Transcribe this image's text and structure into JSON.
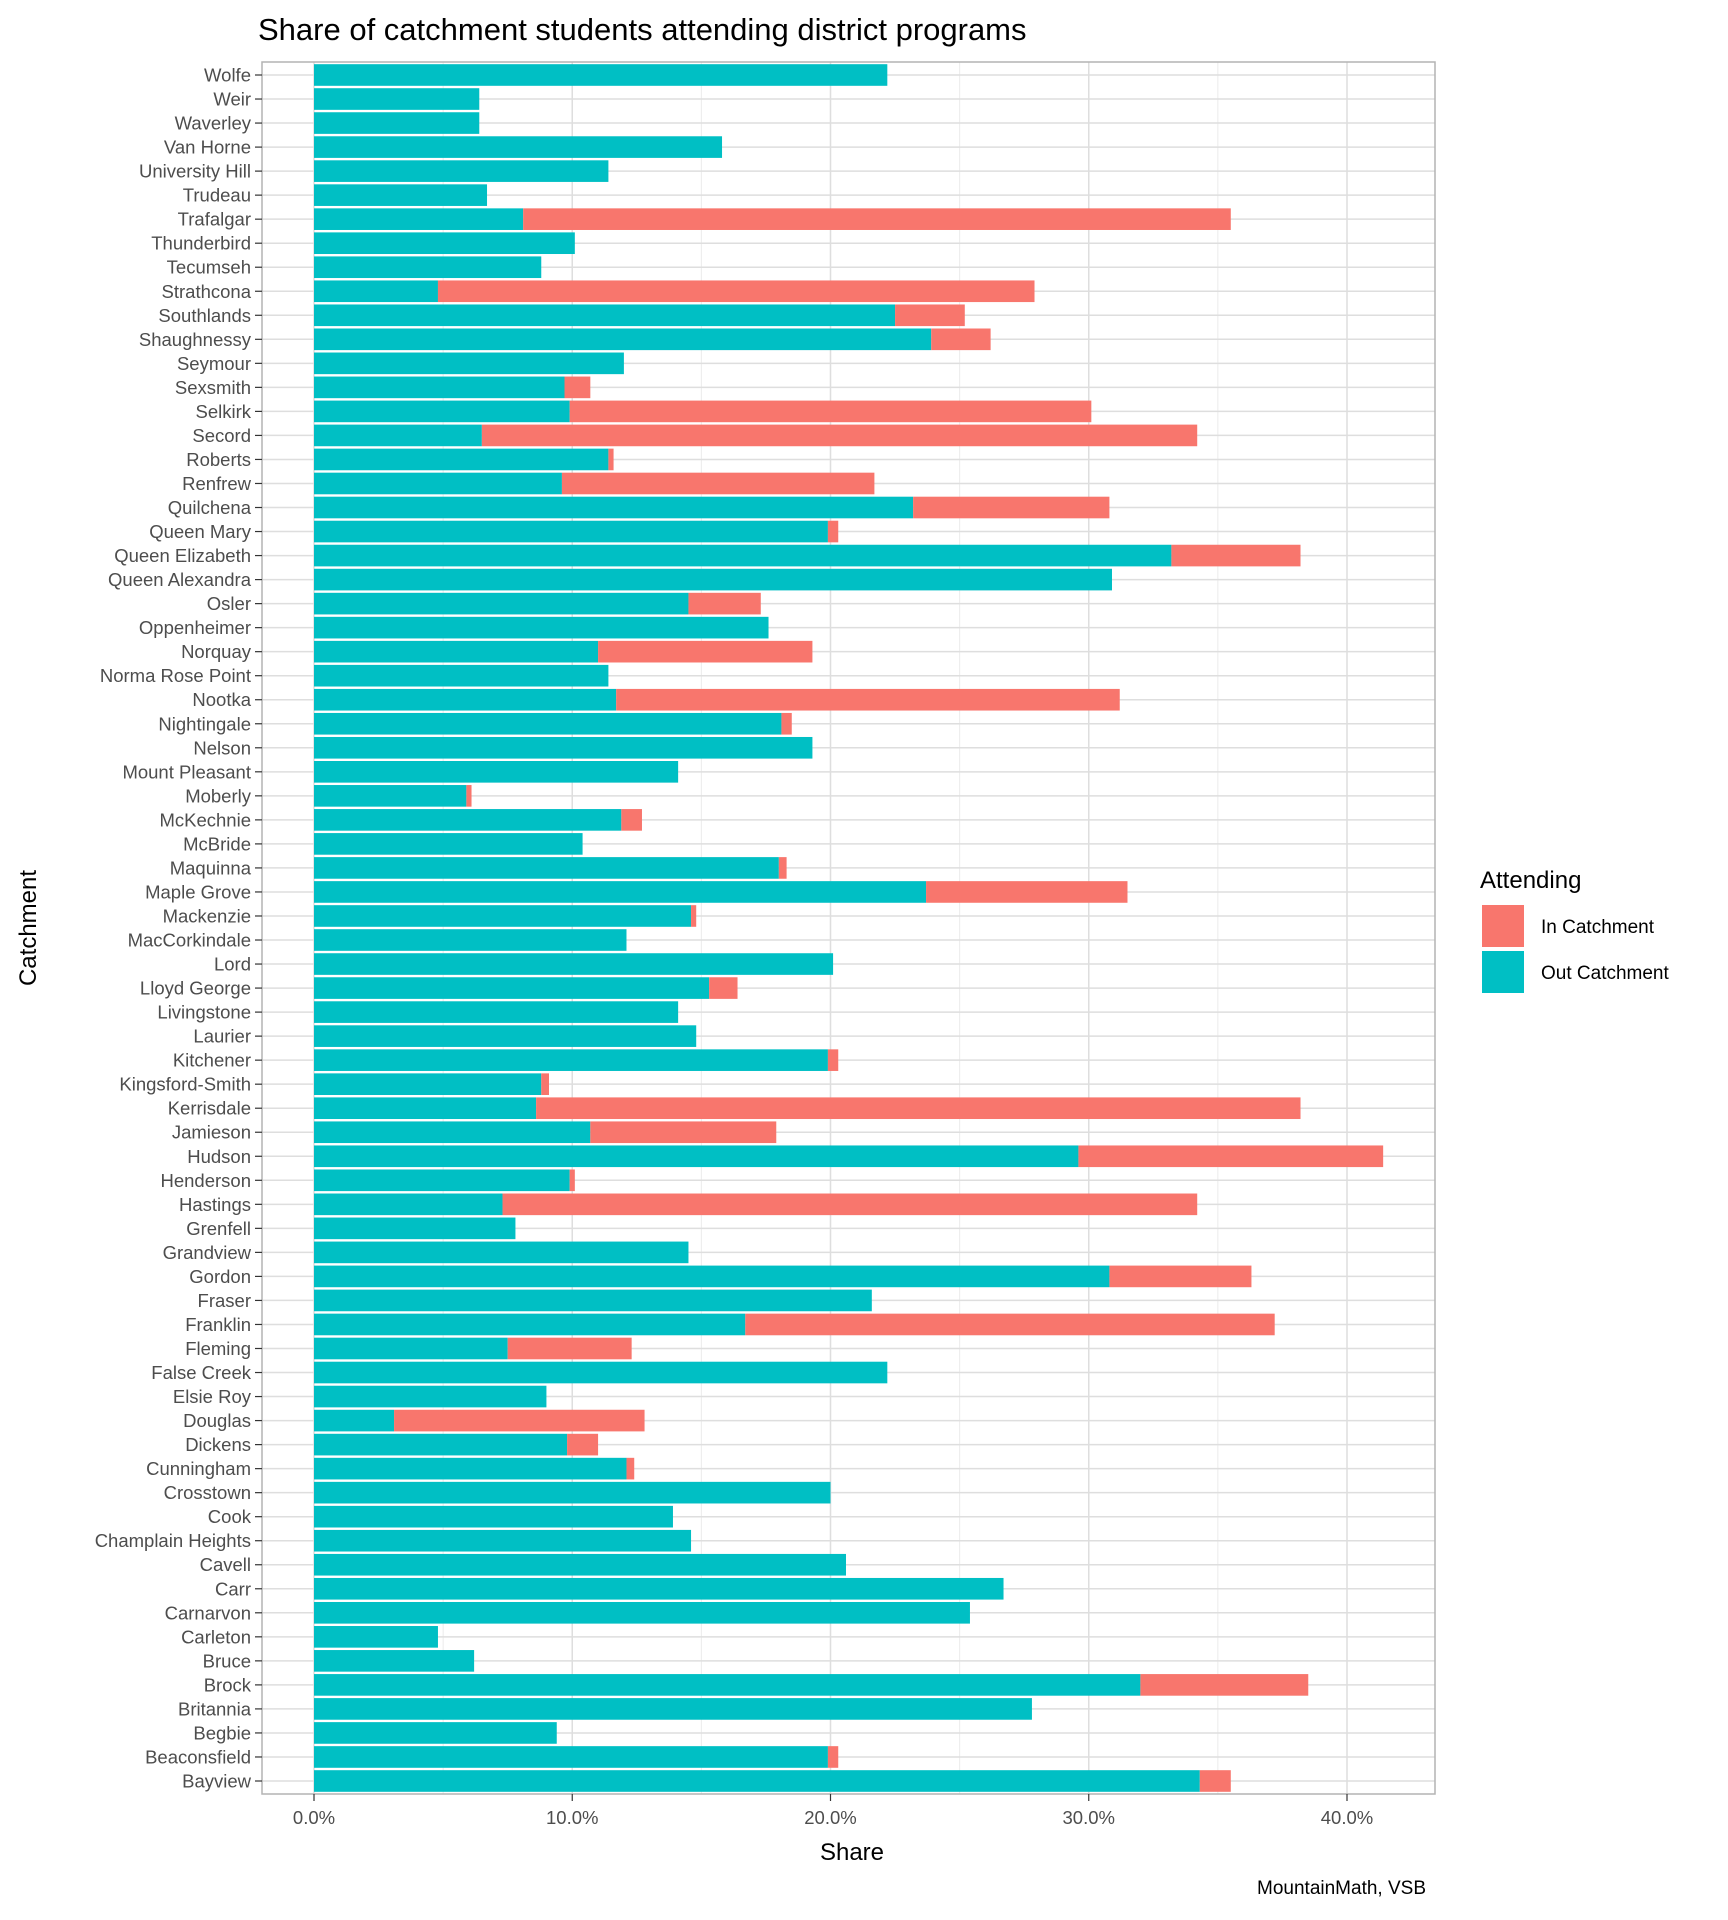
{
  "chart_data": {
    "type": "bar",
    "orientation": "horizontal",
    "stacked": true,
    "title": "Share of catchment students attending district programs",
    "xlabel": "Share",
    "ylabel": "Catchment",
    "caption": "MountainMath, VSB",
    "xlim": [
      0,
      0.435
    ],
    "xticks": [
      0,
      0.1,
      0.2,
      0.3,
      0.4
    ],
    "xtick_labels": [
      "0.0%",
      "10.0%",
      "20.0%",
      "30.0%",
      "40.0%"
    ],
    "grid": true,
    "legend": {
      "title": "Attending",
      "position": "right",
      "entries": [
        {
          "name": "In Catchment",
          "color": "#F8766D"
        },
        {
          "name": "Out Catchment",
          "color": "#00BFC4"
        }
      ]
    },
    "categories": [
      "Wolfe",
      "Weir",
      "Waverley",
      "Van Horne",
      "University Hill",
      "Trudeau",
      "Trafalgar",
      "Thunderbird",
      "Tecumseh",
      "Strathcona",
      "Southlands",
      "Shaughnessy",
      "Seymour",
      "Sexsmith",
      "Selkirk",
      "Secord",
      "Roberts",
      "Renfrew",
      "Quilchena",
      "Queen Mary",
      "Queen Elizabeth",
      "Queen Alexandra",
      "Osler",
      "Oppenheimer",
      "Norquay",
      "Norma Rose Point",
      "Nootka",
      "Nightingale",
      "Nelson",
      "Mount Pleasant",
      "Moberly",
      "McKechnie",
      "McBride",
      "Maquinna",
      "Maple Grove",
      "Mackenzie",
      "MacCorkindale",
      "Lord",
      "Lloyd George",
      "Livingstone",
      "Laurier",
      "Kitchener",
      "Kingsford-Smith",
      "Kerrisdale",
      "Jamieson",
      "Hudson",
      "Henderson",
      "Hastings",
      "Grenfell",
      "Grandview",
      "Gordon",
      "Fraser",
      "Franklin",
      "Fleming",
      "False Creek",
      "Elsie Roy",
      "Douglas",
      "Dickens",
      "Cunningham",
      "Crosstown",
      "Cook",
      "Champlain Heights",
      "Cavell",
      "Carr",
      "Carnarvon",
      "Carleton",
      "Bruce",
      "Brock",
      "Britannia",
      "Begbie",
      "Beaconsfield",
      "Bayview"
    ],
    "series": [
      {
        "name": "Out Catchment",
        "color": "#00BFC4",
        "values": [
          0.222,
          0.064,
          0.064,
          0.158,
          0.114,
          0.067,
          0.081,
          0.101,
          0.088,
          0.048,
          0.225,
          0.239,
          0.12,
          0.097,
          0.099,
          0.065,
          0.114,
          0.096,
          0.232,
          0.199,
          0.332,
          0.309,
          0.145,
          0.176,
          0.11,
          0.114,
          0.117,
          0.181,
          0.193,
          0.141,
          0.059,
          0.119,
          0.104,
          0.18,
          0.237,
          0.146,
          0.121,
          0.201,
          0.153,
          0.141,
          0.148,
          0.199,
          0.088,
          0.086,
          0.107,
          0.296,
          0.099,
          0.073,
          0.078,
          0.145,
          0.308,
          0.216,
          0.167,
          0.075,
          0.222,
          0.09,
          0.031,
          0.098,
          0.121,
          0.2,
          0.139,
          0.146,
          0.206,
          0.267,
          0.254,
          0.048,
          0.062,
          0.32,
          0.278,
          0.094,
          0.199,
          0.343
        ]
      },
      {
        "name": "In Catchment",
        "color": "#F8766D",
        "values": [
          0,
          0,
          0,
          0,
          0,
          0,
          0.274,
          0,
          0,
          0.231,
          0.027,
          0.023,
          0,
          0.01,
          0.202,
          0.277,
          0.002,
          0.121,
          0.076,
          0.004,
          0.05,
          0,
          0.028,
          0,
          0.083,
          0,
          0.195,
          0.004,
          0,
          0,
          0.002,
          0.008,
          0,
          0.003,
          0.078,
          0.002,
          0,
          0,
          0.011,
          0,
          0,
          0.004,
          0.003,
          0.296,
          0.072,
          0.118,
          0.002,
          0.269,
          0,
          0,
          0.055,
          0,
          0.205,
          0.048,
          0,
          0,
          0.097,
          0.012,
          0.003,
          0,
          0,
          0,
          0,
          0,
          0,
          0,
          0,
          0.065,
          0,
          0,
          0.004,
          0.012
        ]
      }
    ]
  }
}
